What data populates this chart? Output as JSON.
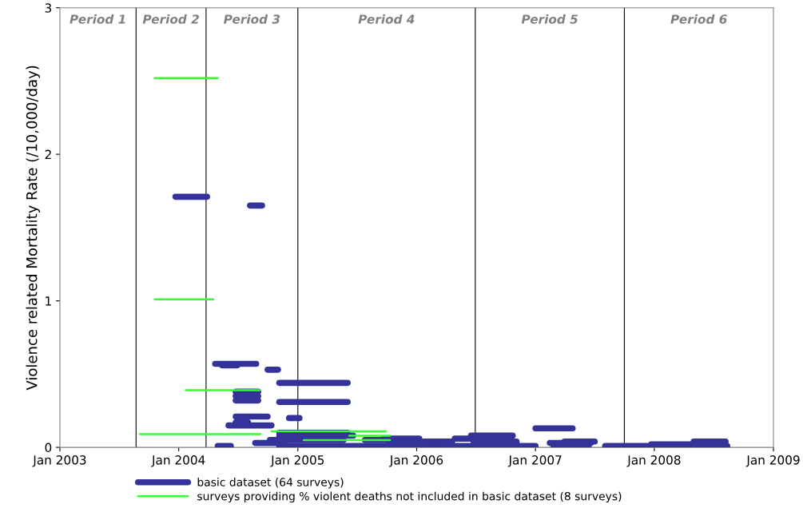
{
  "chart_data": {
    "type": "line",
    "ylabel": "Violence related Mortality Rate (/10,000/day)",
    "xlim": [
      "2003-01-01",
      "2009-01-01"
    ],
    "xticks": [
      {
        "value": "2003-01-01",
        "label": "Jan 2003"
      },
      {
        "value": "2004-01-01",
        "label": "Jan 2004"
      },
      {
        "value": "2005-01-01",
        "label": "Jan 2005"
      },
      {
        "value": "2006-01-01",
        "label": "Jan 2006"
      },
      {
        "value": "2007-01-01",
        "label": "Jan 2007"
      },
      {
        "value": "2008-01-01",
        "label": "Jan 2008"
      },
      {
        "value": "2009-01-01",
        "label": "Jan 2009"
      }
    ],
    "ylim": [
      0,
      3
    ],
    "yticks": [
      0,
      1,
      2,
      3
    ],
    "legend": "bottom",
    "marker": "none",
    "line_style": "solid",
    "ref_lines": [
      {
        "axis": "x",
        "value": "2003-08-23",
        "color": "#000000"
      },
      {
        "axis": "x",
        "value": "2004-03-25",
        "color": "#000000"
      },
      {
        "axis": "x",
        "value": "2005-01-01",
        "color": "#000000"
      },
      {
        "axis": "x",
        "value": "2006-06-30",
        "color": "#000000"
      },
      {
        "axis": "x",
        "value": "2007-10-01",
        "color": "#000000"
      }
    ],
    "annotations": [
      "Period 1",
      "Period 2",
      "Period 3",
      "Period 4",
      "Period 5",
      "Period 6"
    ],
    "series": [
      {
        "name": "basic dataset (64 surveys)",
        "color": "#333399",
        "x": [
          "2003-12-22",
          "2004-03-28"
        ],
        "values": [
          1.71,
          1.71
        ]
      },
      {
        "color": "#333399",
        "x": [
          "2004-08-07",
          "2004-09-13"
        ],
        "values": [
          1.65,
          1.65
        ]
      },
      {
        "color": "#333399",
        "x": [
          "2004-04-22",
          "2004-08-26"
        ],
        "values": [
          0.57,
          0.57
        ]
      },
      {
        "color": "#333399",
        "x": [
          "2004-05-13",
          "2004-06-29"
        ],
        "values": [
          0.56,
          0.56
        ]
      },
      {
        "color": "#333399",
        "x": [
          "2004-09-30",
          "2004-11-01"
        ],
        "values": [
          0.53,
          0.53
        ]
      },
      {
        "color": "#333399",
        "x": [
          "2004-11-05",
          "2005-06-03"
        ],
        "values": [
          0.44,
          0.44
        ]
      },
      {
        "color": "#333399",
        "x": [
          "2004-11-05",
          "2005-06-03"
        ],
        "values": [
          0.31,
          0.31
        ]
      },
      {
        "color": "#333399",
        "x": [
          "2004-06-24",
          "2004-09-01"
        ],
        "values": [
          0.38,
          0.38
        ]
      },
      {
        "color": "#333399",
        "x": [
          "2004-06-24",
          "2004-09-01"
        ],
        "values": [
          0.35,
          0.35
        ]
      },
      {
        "color": "#333399",
        "x": [
          "2004-06-24",
          "2004-09-01"
        ],
        "values": [
          0.32,
          0.32
        ]
      },
      {
        "color": "#333399",
        "x": [
          "2004-06-24",
          "2004-09-30"
        ],
        "values": [
          0.21,
          0.21
        ]
      },
      {
        "color": "#333399",
        "x": [
          "2004-12-05",
          "2005-01-06"
        ],
        "values": [
          0.2,
          0.2
        ]
      },
      {
        "color": "#333399",
        "x": [
          "2004-06-02",
          "2004-10-12"
        ],
        "values": [
          0.15,
          0.15
        ]
      },
      {
        "color": "#333399",
        "x": [
          "2004-06-24",
          "2004-08-01"
        ],
        "values": [
          0.17,
          0.17
        ]
      },
      {
        "color": "#333399",
        "x": [
          "2004-08-23",
          "2004-11-18"
        ],
        "values": [
          0.03,
          0.03
        ]
      },
      {
        "color": "#333399",
        "x": [
          "2004-04-30",
          "2004-06-09"
        ],
        "values": [
          0.01,
          0.01
        ]
      },
      {
        "color": "#333399",
        "x": [
          "2004-11-05",
          "2005-06-03"
        ],
        "values": [
          0.1,
          0.1
        ]
      },
      {
        "color": "#333399",
        "x": [
          "2004-11-05",
          "2005-06-20"
        ],
        "values": [
          0.08,
          0.08
        ]
      },
      {
        "color": "#333399",
        "x": [
          "2004-10-07",
          "2005-05-21"
        ],
        "values": [
          0.05,
          0.05
        ]
      },
      {
        "color": "#333399",
        "x": [
          "2004-11-05",
          "2005-09-21"
        ],
        "values": [
          0.01,
          0.01
        ]
      },
      {
        "color": "#333399",
        "x": [
          "2005-07-26",
          "2005-11-08"
        ],
        "values": [
          0.05,
          0.05
        ]
      },
      {
        "color": "#333399",
        "x": [
          "2005-09-21",
          "2006-01-09"
        ],
        "values": [
          0.06,
          0.06
        ]
      },
      {
        "color": "#333399",
        "x": [
          "2005-12-08",
          "2006-04-20"
        ],
        "values": [
          0.04,
          0.04
        ]
      },
      {
        "color": "#333399",
        "x": [
          "2006-06-17",
          "2006-10-23"
        ],
        "values": [
          0.08,
          0.08
        ]
      },
      {
        "color": "#333399",
        "x": [
          "2006-04-28",
          "2006-08-12"
        ],
        "values": [
          0.06,
          0.06
        ]
      },
      {
        "color": "#333399",
        "x": [
          "2006-06-25",
          "2006-11-04"
        ],
        "values": [
          0.04,
          0.04
        ]
      },
      {
        "color": "#333399",
        "x": [
          "2005-10-05",
          "2006-02-22"
        ],
        "values": [
          0.02,
          0.02
        ]
      },
      {
        "color": "#333399",
        "x": [
          "2006-03-04",
          "2007-01-01"
        ],
        "values": [
          0.01,
          0.01
        ]
      },
      {
        "color": "#333399",
        "x": [
          "2007-01-01",
          "2007-04-25"
        ],
        "values": [
          0.13,
          0.13
        ]
      },
      {
        "color": "#333399",
        "x": [
          "2007-02-14",
          "2007-06-20"
        ],
        "values": [
          0.03,
          0.03
        ]
      },
      {
        "color": "#333399",
        "x": [
          "2007-03-31",
          "2007-07-02"
        ],
        "values": [
          0.04,
          0.04
        ]
      },
      {
        "color": "#333399",
        "x": [
          "2007-02-26",
          "2007-06-13"
        ],
        "values": [
          0.01,
          0.01
        ]
      },
      {
        "color": "#333399",
        "x": [
          "2007-08-03",
          "2007-12-10"
        ],
        "values": [
          0.01,
          0.01
        ]
      },
      {
        "color": "#333399",
        "x": [
          "2007-12-22",
          "2008-05-06"
        ],
        "values": [
          0.02,
          0.02
        ]
      },
      {
        "color": "#333399",
        "x": [
          "2008-05-01",
          "2008-08-07"
        ],
        "values": [
          0.04,
          0.04
        ]
      },
      {
        "color": "#333399",
        "x": [
          "2007-12-22",
          "2008-08-12"
        ],
        "values": [
          0.01,
          0.01
        ]
      },
      {
        "name": "surveys providing % violent deaths not included in basic dataset (8 surveys)",
        "color": "#33ff33",
        "x": [
          "2003-10-19",
          "2004-04-30"
        ],
        "values": [
          2.52,
          2.52
        ]
      },
      {
        "color": "#33ff33",
        "x": [
          "2003-10-19",
          "2004-04-16"
        ],
        "values": [
          1.01,
          1.01
        ]
      },
      {
        "color": "#33ff33",
        "x": [
          "2004-01-23",
          "2004-09-05"
        ],
        "values": [
          0.39,
          0.39
        ]
      },
      {
        "color": "#33ff33",
        "x": [
          "2003-09-04",
          "2004-09-08"
        ],
        "values": [
          0.09,
          0.09
        ]
      },
      {
        "color": "#33ff33",
        "x": [
          "2004-10-12",
          "2005-09-28"
        ],
        "values": [
          0.11,
          0.11
        ]
      },
      {
        "color": "#33ff33",
        "x": [
          "2005-06-08",
          "2005-10-11"
        ],
        "values": [
          0.08,
          0.08
        ]
      },
      {
        "color": "#33ff33",
        "x": [
          "2005-01-19",
          "2005-10-11"
        ],
        "values": [
          0.05,
          0.05
        ]
      }
    ]
  }
}
